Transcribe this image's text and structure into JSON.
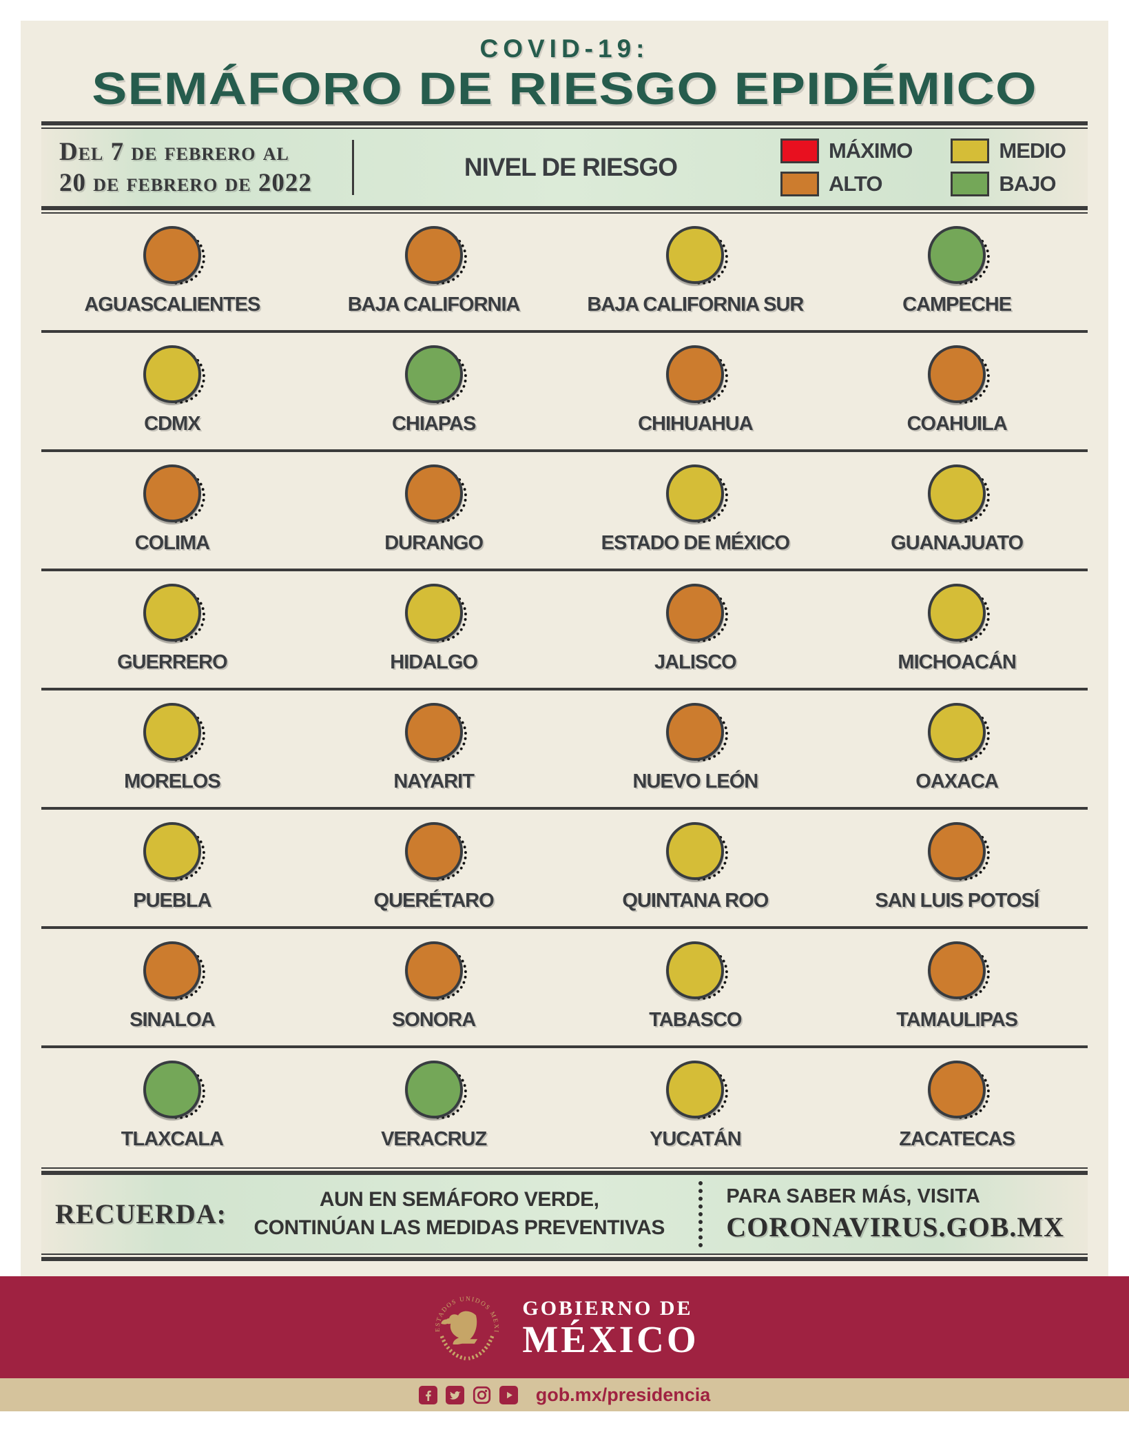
{
  "header": {
    "supertitle": "COVID-19:",
    "title": "SEMÁFORO DE RIESGO EPIDÉMICO"
  },
  "period": {
    "line1": "Del 7 de febrero al",
    "line2": "20 de febrero de 2022"
  },
  "legend": {
    "title": "NIVEL DE RIESGO",
    "levels": [
      {
        "key": "maximo",
        "label": "MÁXIMO",
        "color": "#e8101f"
      },
      {
        "key": "alto",
        "label": "ALTO",
        "color": "#cc7c2e"
      },
      {
        "key": "medio",
        "label": "MEDIO",
        "color": "#d5bd37"
      },
      {
        "key": "bajo",
        "label": "BAJO",
        "color": "#74a758"
      }
    ]
  },
  "chart_data": {
    "type": "table",
    "title": "COVID-19: Semáforo de Riesgo Epidémico",
    "subtitle": "Del 7 de febrero al 20 de febrero de 2022",
    "legend_entries": [
      "MÁXIMO",
      "ALTO",
      "MEDIO",
      "BAJO"
    ],
    "columns": 4,
    "rows": 8,
    "categories": [
      "AGUASCALIENTES",
      "BAJA CALIFORNIA",
      "BAJA CALIFORNIA SUR",
      "CAMPECHE",
      "CDMX",
      "CHIAPAS",
      "CHIHUAHUA",
      "COAHUILA",
      "COLIMA",
      "DURANGO",
      "ESTADO DE MÉXICO",
      "GUANAJUATO",
      "GUERRERO",
      "HIDALGO",
      "JALISCO",
      "MICHOACÁN",
      "MORELOS",
      "NAYARIT",
      "NUEVO LEÓN",
      "OAXACA",
      "PUEBLA",
      "QUERÉTARO",
      "QUINTANA ROO",
      "SAN LUIS POTOSÍ",
      "SINALOA",
      "SONORA",
      "TABASCO",
      "TAMAULIPAS",
      "TLAXCALA",
      "VERACRUZ",
      "YUCATÁN",
      "ZACATECAS"
    ],
    "values": [
      "alto",
      "alto",
      "medio",
      "bajo",
      "medio",
      "bajo",
      "alto",
      "alto",
      "alto",
      "alto",
      "medio",
      "medio",
      "medio",
      "medio",
      "alto",
      "medio",
      "medio",
      "alto",
      "alto",
      "medio",
      "medio",
      "alto",
      "medio",
      "alto",
      "alto",
      "alto",
      "medio",
      "alto",
      "bajo",
      "bajo",
      "medio",
      "alto"
    ]
  },
  "reminder": {
    "label": "RECUERDA:",
    "message_line1": "AUN EN SEMÁFORO VERDE,",
    "message_line2": "CONTINÚAN LAS MEDIDAS PREVENTIVAS",
    "cta_line1": "PARA SABER MÁS, VISITA",
    "cta_line2": "CORONAVIRUS.GOB.MX"
  },
  "footer": {
    "seal_text": "ESTADOS UNIDOS MEXICANOS",
    "brand_line1": "GOBIERNO DE",
    "brand_line2": "MÉXICO",
    "social_icons": [
      "facebook-icon",
      "twitter-icon",
      "instagram-icon",
      "youtube-icon"
    ],
    "url": "gob.mx/presidencia"
  },
  "colors": {
    "title_green": "#265c4d",
    "cream_background": "#f0ece0",
    "band_green": "#dcebd8",
    "text_dark": "#3a3d41",
    "maroon": "#9f2241",
    "tan": "#d5c39c",
    "seal_gold": "#c6a567"
  }
}
